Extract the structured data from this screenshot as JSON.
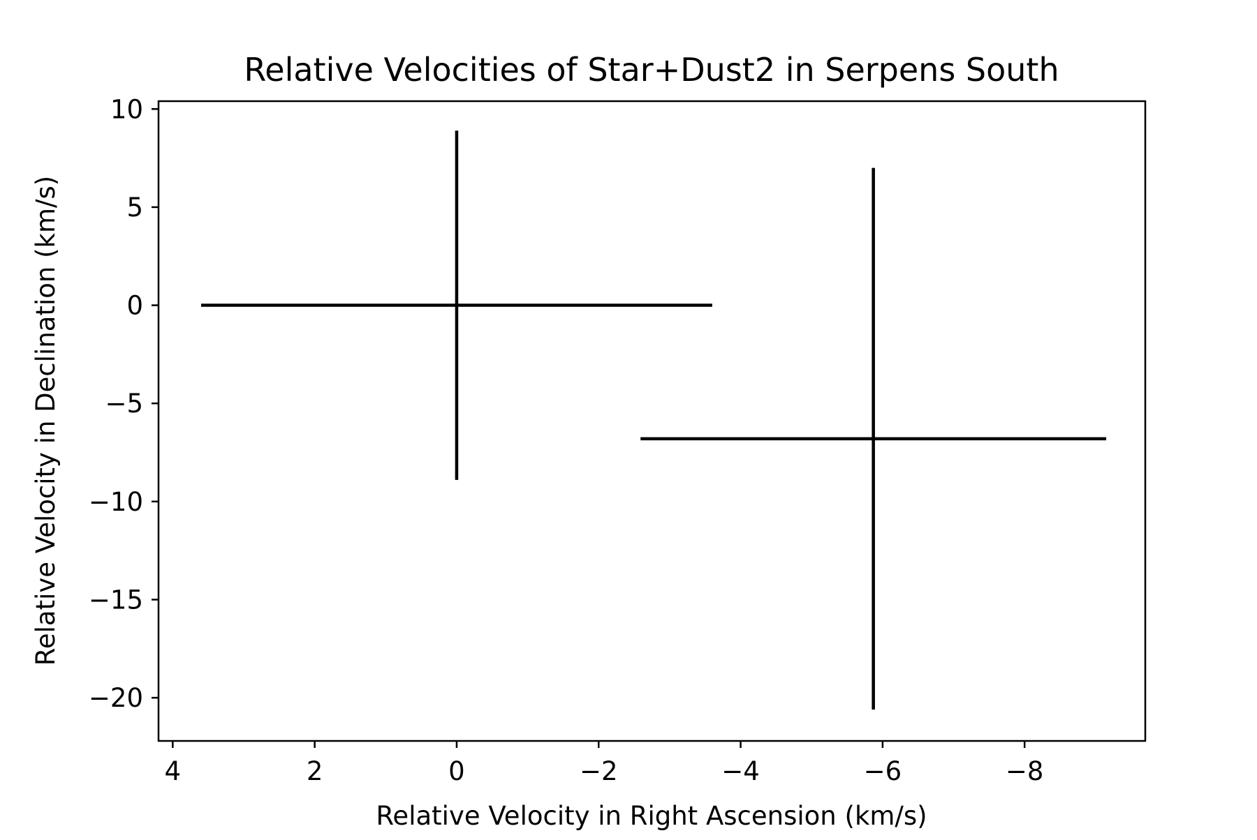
{
  "chart_data": {
    "type": "scatter",
    "title": "Relative Velocities of Star+Dust2 in Serpens South",
    "xlabel": "Relative Velocity in Right Ascension (km/s)",
    "ylabel": "Relative Velocity in Declination (km/s)",
    "xlim": [
      4.2,
      -9.7
    ],
    "ylim": [
      -22.2,
      10.4
    ],
    "x_inverted": true,
    "x_ticks": [
      4,
      2,
      0,
      -2,
      -4,
      -6,
      -8
    ],
    "x_tick_labels": [
      "4",
      "2",
      "0",
      "−2",
      "−4",
      "−6",
      "−8"
    ],
    "y_ticks": [
      10,
      5,
      0,
      -5,
      -10,
      -15,
      -20
    ],
    "y_tick_labels": [
      "10",
      "5",
      "0",
      "−5",
      "−10",
      "−15",
      "−20"
    ],
    "grid": false,
    "legend": false,
    "series": [
      {
        "points": [
          {
            "x": 0.0,
            "y": 0.0,
            "xerr": 3.6,
            "yerr": 8.9
          },
          {
            "x": -5.87,
            "y": -6.8,
            "xerr": 3.28,
            "yerr": 13.8
          }
        ]
      }
    ],
    "colors": {
      "errorbar": "#000000",
      "axes": "#000000",
      "background": "#ffffff"
    }
  }
}
